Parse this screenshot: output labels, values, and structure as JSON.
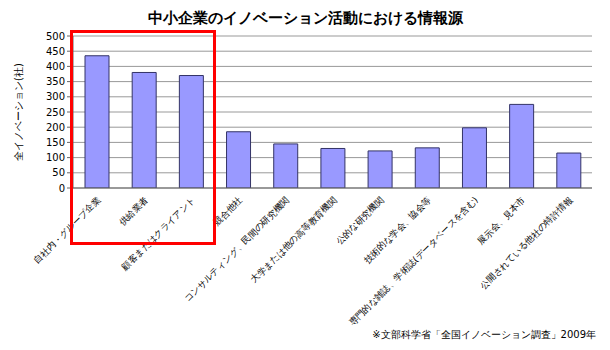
{
  "chart_data": {
    "type": "bar",
    "title": "中小企業のイノベーション活動における情報源",
    "y_label": "全イノベーション(社)",
    "categories": [
      "自社内・グループ企業",
      "供給業者",
      "顧客またはクライアント",
      "競合他社",
      "コンサルティング、民間の研究機関",
      "大学または他の高等教育機関",
      "公的な研究機関",
      "技術的な学会、協会等",
      "専門的な雑誌、学術誌(データベースを含む)",
      "展示会、見本市",
      "公開されている他社の特許情報"
    ],
    "values": [
      435,
      380,
      370,
      185,
      145,
      130,
      122,
      132,
      198,
      275,
      115
    ],
    "color": "#9999ff",
    "ylim": [
      0,
      500
    ],
    "yticks": [
      0,
      50,
      100,
      150,
      200,
      250,
      300,
      350,
      400,
      450,
      500
    ],
    "grid": true,
    "annotations": [
      "※文部科学省「全国イノベーション調査」2009年"
    ]
  }
}
